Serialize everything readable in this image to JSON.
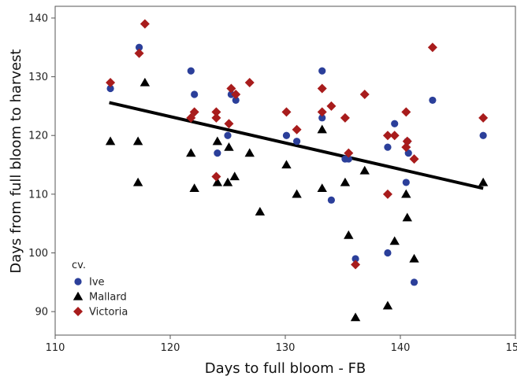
{
  "chart_data": {
    "type": "scatter",
    "xlabel": "Days to full bloom - FB",
    "ylabel": "Days from full bloom to harvest",
    "xlim": [
      110,
      150
    ],
    "ylim": [
      86,
      142
    ],
    "xticks": [
      "110",
      "120",
      "130",
      "140",
      "150"
    ],
    "yticks": [
      "90",
      "100",
      "110",
      "120",
      "130",
      "140"
    ],
    "xtick_values": [
      110,
      120,
      130,
      140,
      150
    ],
    "ytick_values": [
      90,
      100,
      110,
      120,
      130,
      140
    ],
    "grid": false,
    "legend": {
      "title": "cv.",
      "placement": "bottom-left"
    },
    "trendline": {
      "x": [
        114.7,
        147.2
      ],
      "y": [
        125.6,
        111.0
      ],
      "color": "#000000"
    },
    "series": [
      {
        "name": "Ive",
        "marker": "circle",
        "color": "#2b3f9a",
        "points": [
          [
            114.8,
            128
          ],
          [
            117.3,
            135
          ],
          [
            121.8,
            131
          ],
          [
            122.1,
            127
          ],
          [
            124.1,
            117
          ],
          [
            125.0,
            120
          ],
          [
            125.3,
            127
          ],
          [
            125.7,
            126
          ],
          [
            130.1,
            120
          ],
          [
            131.0,
            119
          ],
          [
            133.2,
            131
          ],
          [
            133.2,
            123
          ],
          [
            134.0,
            109
          ],
          [
            135.2,
            116
          ],
          [
            135.5,
            116
          ],
          [
            136.1,
            99
          ],
          [
            138.9,
            118
          ],
          [
            138.9,
            100
          ],
          [
            139.5,
            122
          ],
          [
            140.5,
            112
          ],
          [
            140.6,
            119
          ],
          [
            140.7,
            117
          ],
          [
            141.2,
            95
          ],
          [
            142.8,
            126
          ],
          [
            147.2,
            120
          ]
        ]
      },
      {
        "name": "Mallard",
        "marker": "triangle",
        "color": "#000000",
        "points": [
          [
            114.8,
            119
          ],
          [
            117.2,
            119
          ],
          [
            117.2,
            112
          ],
          [
            117.8,
            129
          ],
          [
            121.8,
            117
          ],
          [
            122.1,
            111
          ],
          [
            124.1,
            119
          ],
          [
            124.1,
            112
          ],
          [
            125.0,
            112
          ],
          [
            125.1,
            118
          ],
          [
            125.6,
            113
          ],
          [
            126.9,
            117
          ],
          [
            127.8,
            107
          ],
          [
            130.1,
            115
          ],
          [
            131.0,
            110
          ],
          [
            133.2,
            121
          ],
          [
            133.2,
            111
          ],
          [
            135.2,
            112
          ],
          [
            135.5,
            103
          ],
          [
            136.1,
            89
          ],
          [
            136.9,
            114
          ],
          [
            138.9,
            91
          ],
          [
            139.5,
            102
          ],
          [
            140.5,
            110
          ],
          [
            140.6,
            106
          ],
          [
            141.2,
            99
          ],
          [
            147.2,
            112
          ]
        ]
      },
      {
        "name": "Victoria",
        "marker": "diamond",
        "color": "#a81c1c",
        "points": [
          [
            114.8,
            129
          ],
          [
            117.3,
            134
          ],
          [
            117.8,
            139
          ],
          [
            121.8,
            123
          ],
          [
            122.1,
            124
          ],
          [
            124.0,
            124
          ],
          [
            124.0,
            123
          ],
          [
            124.0,
            113
          ],
          [
            125.1,
            122
          ],
          [
            125.3,
            128
          ],
          [
            125.7,
            127
          ],
          [
            126.9,
            129
          ],
          [
            130.1,
            124
          ],
          [
            131.0,
            121
          ],
          [
            133.2,
            128
          ],
          [
            133.2,
            124
          ],
          [
            134.0,
            125
          ],
          [
            135.2,
            123
          ],
          [
            135.5,
            117
          ],
          [
            136.1,
            98
          ],
          [
            136.9,
            127
          ],
          [
            138.9,
            120
          ],
          [
            138.9,
            110
          ],
          [
            139.5,
            120
          ],
          [
            140.5,
            124
          ],
          [
            140.5,
            118
          ],
          [
            140.6,
            119
          ],
          [
            141.2,
            116
          ],
          [
            142.8,
            135
          ],
          [
            147.2,
            123
          ]
        ]
      }
    ]
  }
}
